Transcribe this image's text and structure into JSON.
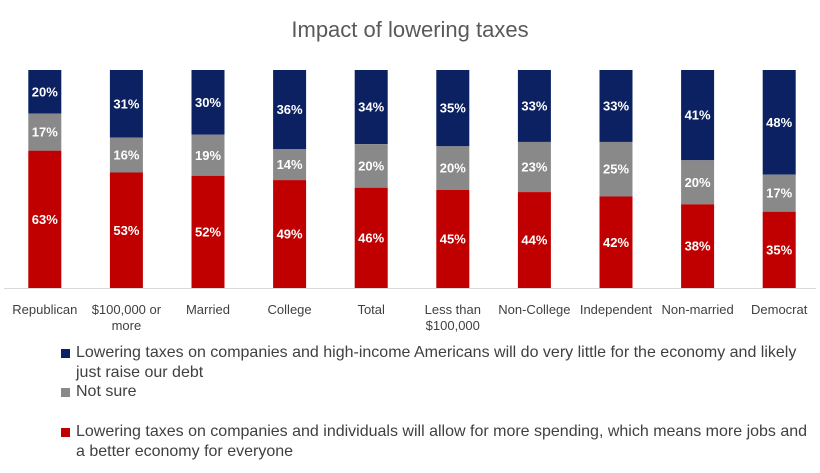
{
  "chart_data": {
    "type": "bar",
    "stacked": true,
    "percent_stacked": true,
    "title": "Impact of lowering taxes",
    "unit": "%",
    "ylim": [
      0,
      100
    ],
    "grid": false,
    "y_axis_visible": false,
    "legend_position": "bottom",
    "categories": [
      "Republican",
      "$100,000 or more",
      "Married",
      "College",
      "Total",
      "Less than $100,000",
      "Non-College",
      "Independent",
      "Non-married",
      "Democrat"
    ],
    "series": [
      {
        "name": "Lowering taxes on companies and high-income Americans will do very little for the economy and likely just raise our debt",
        "color": "#0c2162",
        "values": [
          20,
          31,
          30,
          36,
          34,
          35,
          33,
          33,
          41,
          48
        ]
      },
      {
        "name": "Not sure",
        "color": "#898989",
        "values": [
          17,
          16,
          19,
          14,
          20,
          20,
          23,
          25,
          20,
          17
        ]
      },
      {
        "name": "Lowering taxes on companies and individuals will allow for more spending, which means more jobs and a better economy for everyone",
        "color": "#c00000",
        "values": [
          63,
          53,
          52,
          49,
          46,
          45,
          44,
          42,
          38,
          35
        ]
      }
    ]
  }
}
